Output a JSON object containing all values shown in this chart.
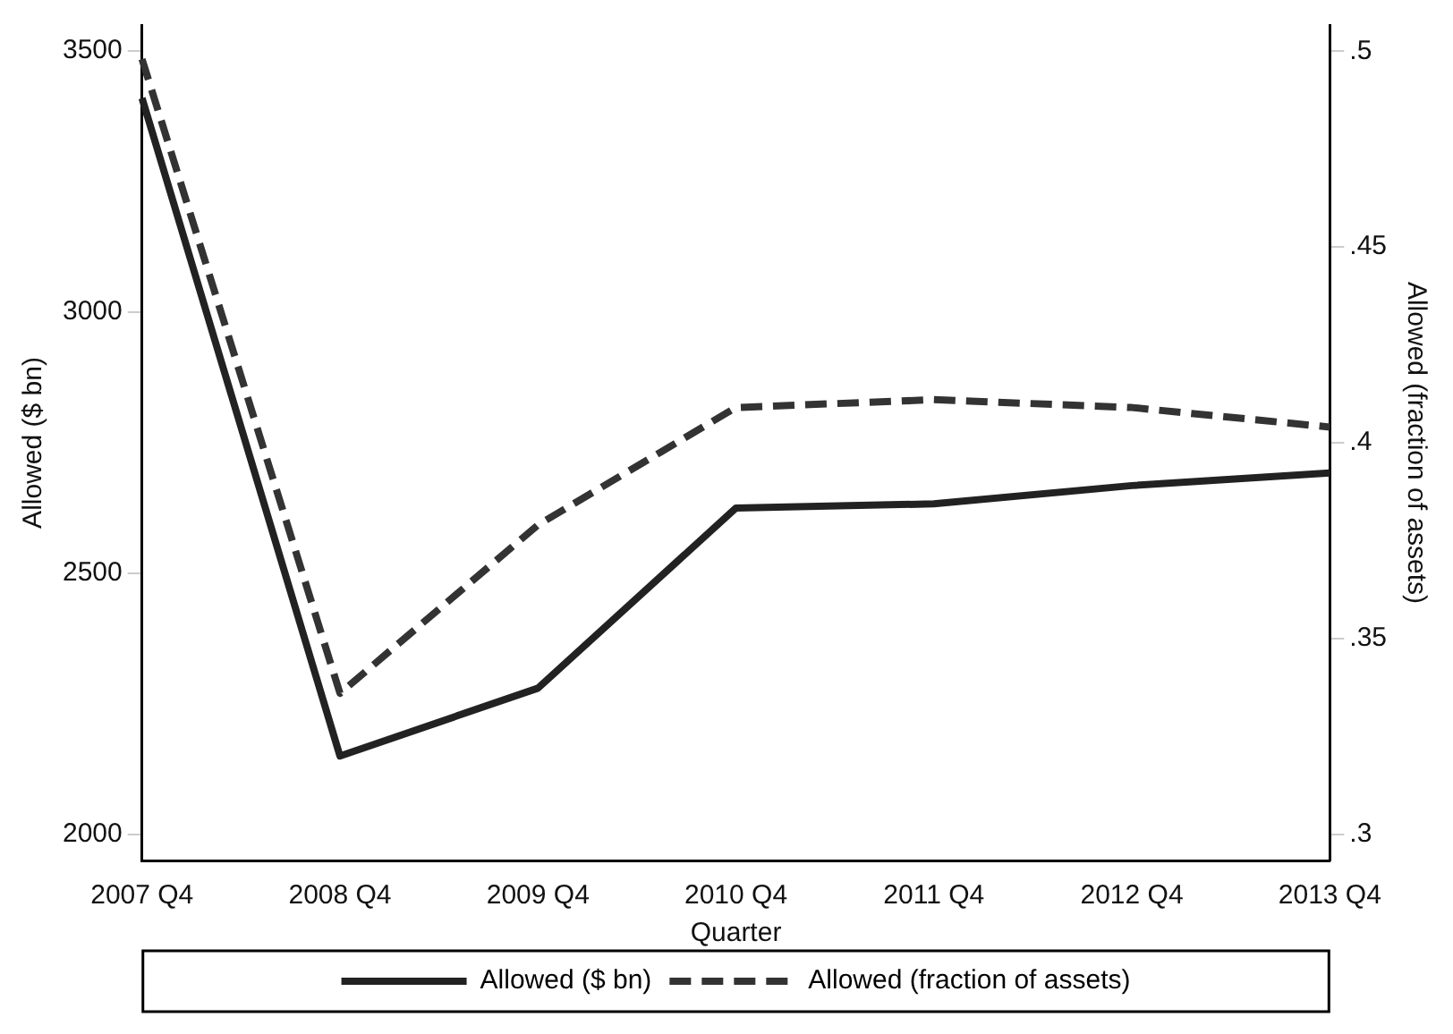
{
  "chart_data": {
    "type": "line",
    "xlabel": "Quarter",
    "ylabel": "Allowed ($ bn)",
    "y2label": "Allowed (fraction of assets)",
    "categories": [
      "2007 Q4",
      "2008 Q4",
      "2009 Q4",
      "2010 Q4",
      "2011 Q4",
      "2012 Q4",
      "2013 Q4"
    ],
    "series": [
      {
        "name": "Allowed ($ bn)",
        "color": "#222222",
        "line_style": "solid",
        "values": [
          3410,
          2150,
          2280,
          2625,
          2633,
          2668,
          2692
        ]
      },
      {
        "name": "Allowed (fraction of assets)",
        "color": "#333333",
        "line_style": "dashed",
        "axis": "y2",
        "values": [
          0.498,
          0.336,
          0.379,
          0.409,
          0.411,
          0.409,
          0.404
        ]
      }
    ],
    "ylim": [
      1950,
      3550
    ],
    "yticks": [
      2000,
      2500,
      3000,
      3500
    ],
    "y2lim": [
      0.2933,
      0.5067
    ],
    "y2ticks": [
      {
        "value": 0.3,
        "label": ".3"
      },
      {
        "value": 0.35,
        "label": ".35"
      },
      {
        "value": 0.4,
        "label": ".4"
      },
      {
        "value": 0.45,
        "label": ".45"
      },
      {
        "value": 0.5,
        "label": ".5"
      }
    ],
    "grid": false,
    "legend": "bottom",
    "marker": "none"
  }
}
